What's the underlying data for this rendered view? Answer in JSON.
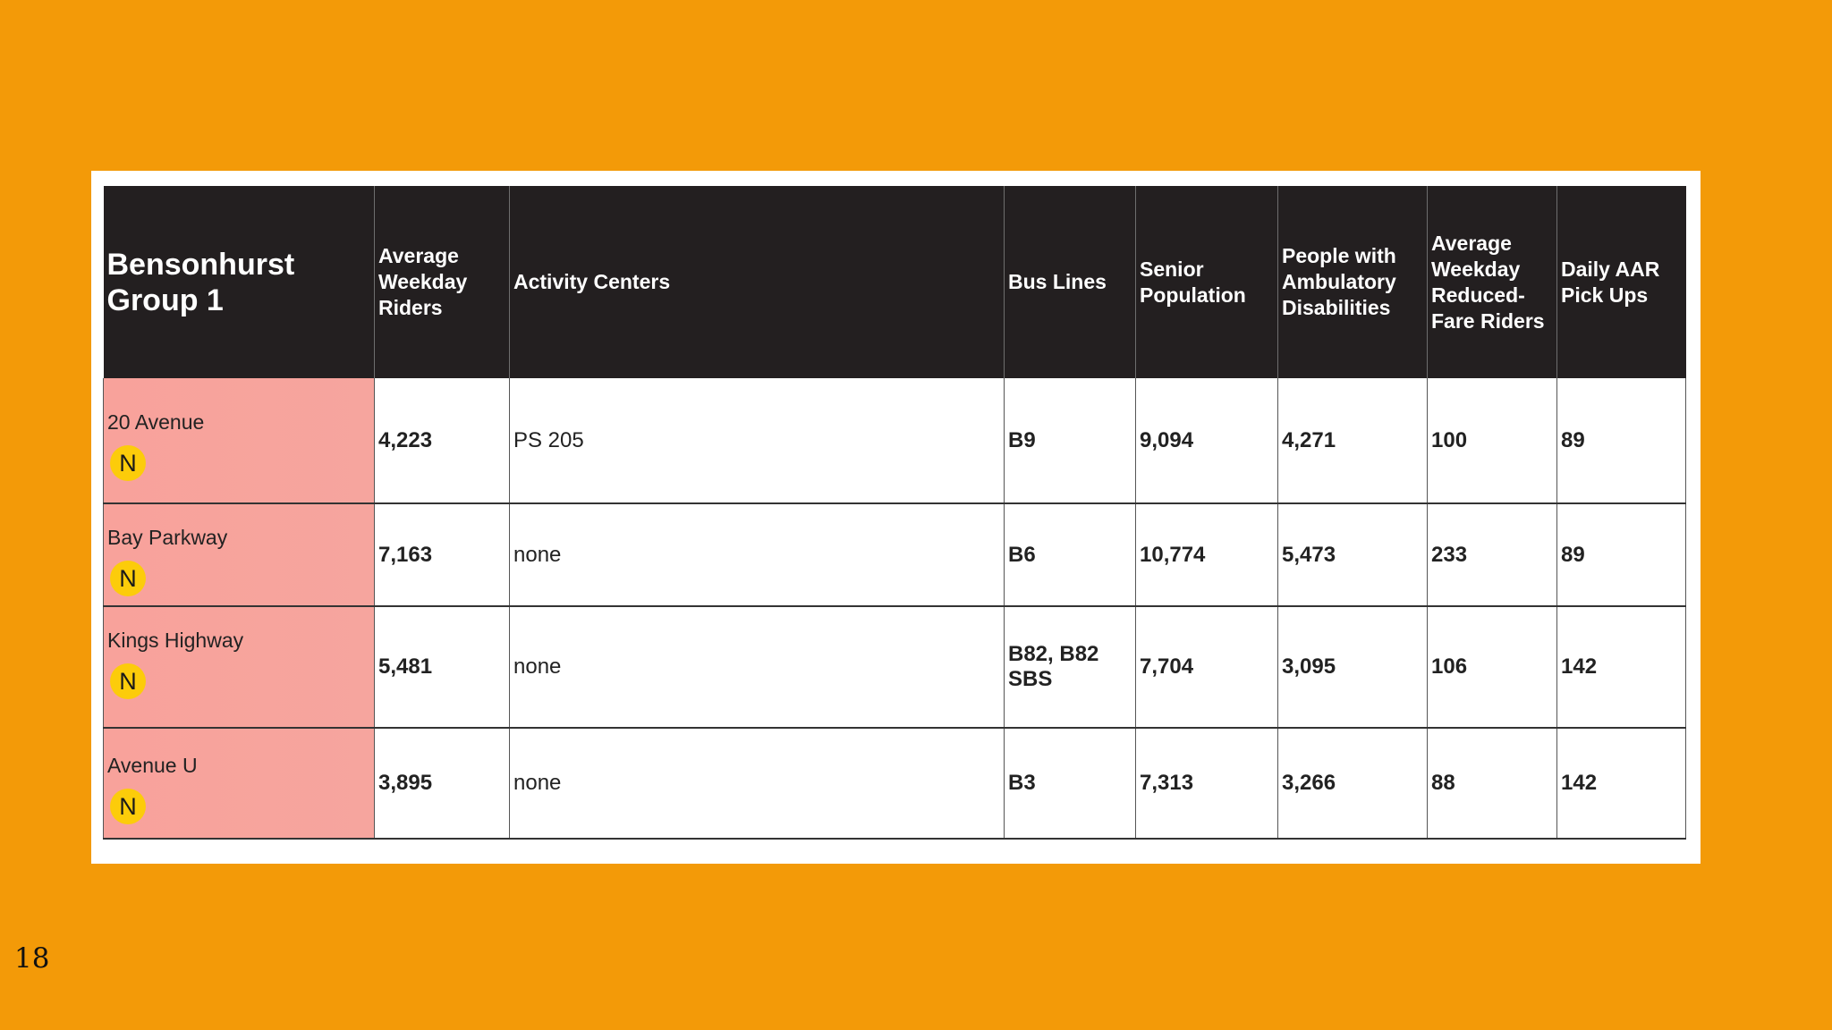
{
  "table": {
    "headers": [
      "Bensonhurst Group 1",
      "Average Weekday Riders",
      "Activity Centers",
      "Bus Lines",
      "Senior Population",
      "People with Ambulatory Disabilities",
      "Average Weekday Reduced-Fare Riders",
      "Daily AAR Pick Ups"
    ],
    "rows": [
      {
        "station": "20 Avenue",
        "line": "N",
        "riders": "4,223",
        "activity": "PS 205",
        "bus": "B9",
        "senior": "9,094",
        "ambulatory": "4,271",
        "reduced": "100",
        "aar": "89"
      },
      {
        "station": "Bay Parkway",
        "line": "N",
        "riders": "7,163",
        "activity": "none",
        "bus": "B6",
        "senior": "10,774",
        "ambulatory": "5,473",
        "reduced": "233",
        "aar": "89"
      },
      {
        "station": "Kings Highway",
        "line": "N",
        "riders": "5,481",
        "activity": "none",
        "bus": "B82, B82 SBS",
        "senior": "7,704",
        "ambulatory": "3,095",
        "reduced": "106",
        "aar": "142"
      },
      {
        "station": "Avenue U",
        "line": "N",
        "riders": "3,895",
        "activity": "none",
        "bus": "B3",
        "senior": "7,313",
        "ambulatory": "3,266",
        "reduced": "88",
        "aar": "142"
      }
    ]
  },
  "colors": {
    "background": "#F39A08",
    "header": "#231f20",
    "station_cell": "#F8A29B",
    "n_line": "#FCCC0A"
  },
  "page_number": "18"
}
